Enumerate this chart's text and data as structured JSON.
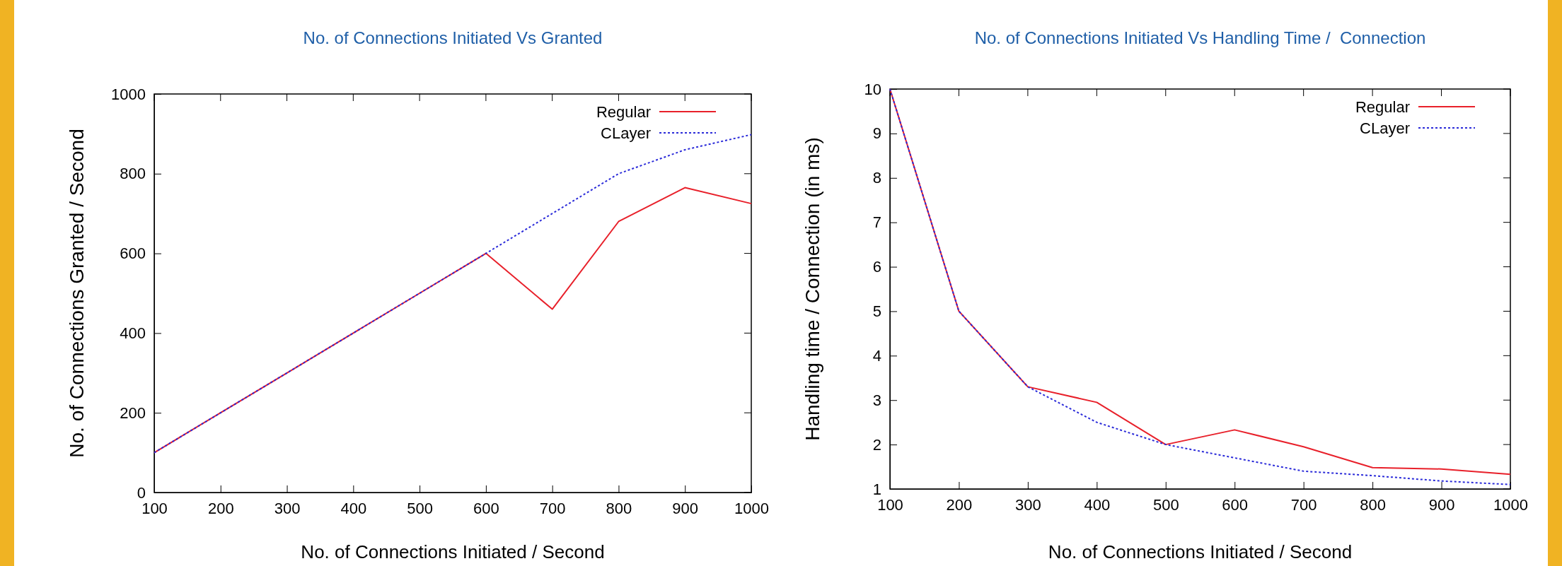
{
  "chart_data": [
    {
      "type": "line",
      "title": "No. of Connections Initiated Vs Granted",
      "xlabel": "No. of Connections Initiated / Second",
      "ylabel": "No. of Connections Granted / Second",
      "x": [
        100,
        200,
        300,
        400,
        500,
        600,
        700,
        800,
        900,
        1000
      ],
      "xlim": [
        100,
        1000
      ],
      "xticks": [
        100,
        200,
        300,
        400,
        500,
        600,
        700,
        800,
        900,
        1000
      ],
      "ylim": [
        0,
        1000
      ],
      "yticks": [
        0,
        200,
        400,
        600,
        800,
        1000
      ],
      "legend": "top right",
      "grid": false,
      "series": [
        {
          "name": "Regular",
          "color": "#e8202a",
          "line_style": "solid",
          "values": [
            100,
            200,
            300,
            400,
            500,
            600,
            460,
            680,
            765,
            725
          ]
        },
        {
          "name": "CLayer",
          "color": "#2b2bd9",
          "line_style": "dotted",
          "values": [
            100,
            200,
            300,
            400,
            500,
            600,
            700,
            800,
            860,
            898
          ]
        }
      ]
    },
    {
      "type": "line",
      "title": "No. of Connections Initiated Vs Handling Time /  Connection",
      "xlabel": "No. of Connections Initiated / Second",
      "ylabel": "Handling time / Connection (in ms)",
      "x": [
        100,
        200,
        300,
        400,
        500,
        600,
        700,
        800,
        900,
        1000
      ],
      "xlim": [
        100,
        1000
      ],
      "xticks": [
        100,
        200,
        300,
        400,
        500,
        600,
        700,
        800,
        900,
        1000
      ],
      "ylim": [
        1,
        10
      ],
      "yticks": [
        1,
        2,
        3,
        4,
        5,
        6,
        7,
        8,
        9,
        10
      ],
      "legend": "top right",
      "grid": false,
      "series": [
        {
          "name": "Regular",
          "color": "#e8202a",
          "line_style": "solid",
          "values": [
            10,
            5,
            3.3,
            2.95,
            2.0,
            2.33,
            1.95,
            1.48,
            1.45,
            1.33
          ]
        },
        {
          "name": "CLayer",
          "color": "#2b2bd9",
          "line_style": "dotted",
          "values": [
            10,
            5,
            3.3,
            2.5,
            2.0,
            1.7,
            1.4,
            1.3,
            1.18,
            1.1
          ]
        }
      ]
    }
  ]
}
